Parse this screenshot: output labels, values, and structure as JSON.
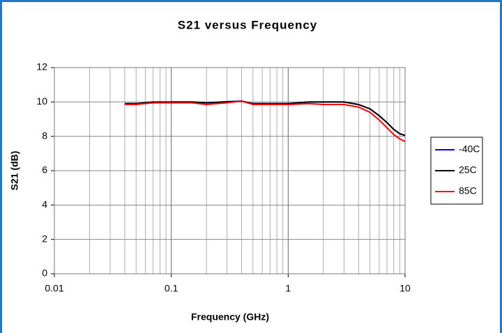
{
  "chart_data": {
    "type": "line",
    "title": "S21 versus Frequency",
    "x_label": "Frequency (GHz)",
    "y_label": "S21 (dB)",
    "x_log": true,
    "x_minor_grid": true,
    "grid": true,
    "legend": "right",
    "xlim": [
      0.01,
      10
    ],
    "xticks": [
      0.01,
      0.1,
      1,
      10
    ],
    "ylim": [
      0,
      12
    ],
    "yticks": [
      0,
      2,
      4,
      6,
      8,
      10,
      12
    ],
    "x": [
      0.04,
      0.05,
      0.07,
      0.1,
      0.15,
      0.2,
      0.3,
      0.4,
      0.5,
      0.7,
      1,
      1.5,
      2,
      3,
      4,
      5,
      6,
      7,
      8,
      9,
      10
    ],
    "series": [
      {
        "name": "-40C",
        "color": "#0000ff",
        "values": [
          9.9,
          9.9,
          9.95,
          10,
          10,
          9.95,
          10.02,
          10.05,
          9.9,
          9.9,
          9.9,
          10,
          10,
          10,
          9.85,
          9.6,
          9.2,
          8.8,
          8.4,
          8.15,
          8.05
        ]
      },
      {
        "name": "25C",
        "color": "#000000",
        "values": [
          9.9,
          9.9,
          10,
          10,
          10,
          9.95,
          10,
          10.05,
          9.9,
          9.9,
          9.9,
          10,
          10,
          10,
          9.85,
          9.6,
          9.2,
          8.8,
          8.4,
          8.15,
          8.05
        ]
      },
      {
        "name": "85C",
        "color": "#ff0000",
        "values": [
          9.85,
          9.85,
          9.95,
          9.95,
          9.95,
          9.85,
          9.95,
          10.05,
          9.85,
          9.85,
          9.85,
          9.9,
          9.85,
          9.85,
          9.7,
          9.4,
          8.95,
          8.5,
          8.1,
          7.85,
          7.7
        ]
      }
    ]
  }
}
